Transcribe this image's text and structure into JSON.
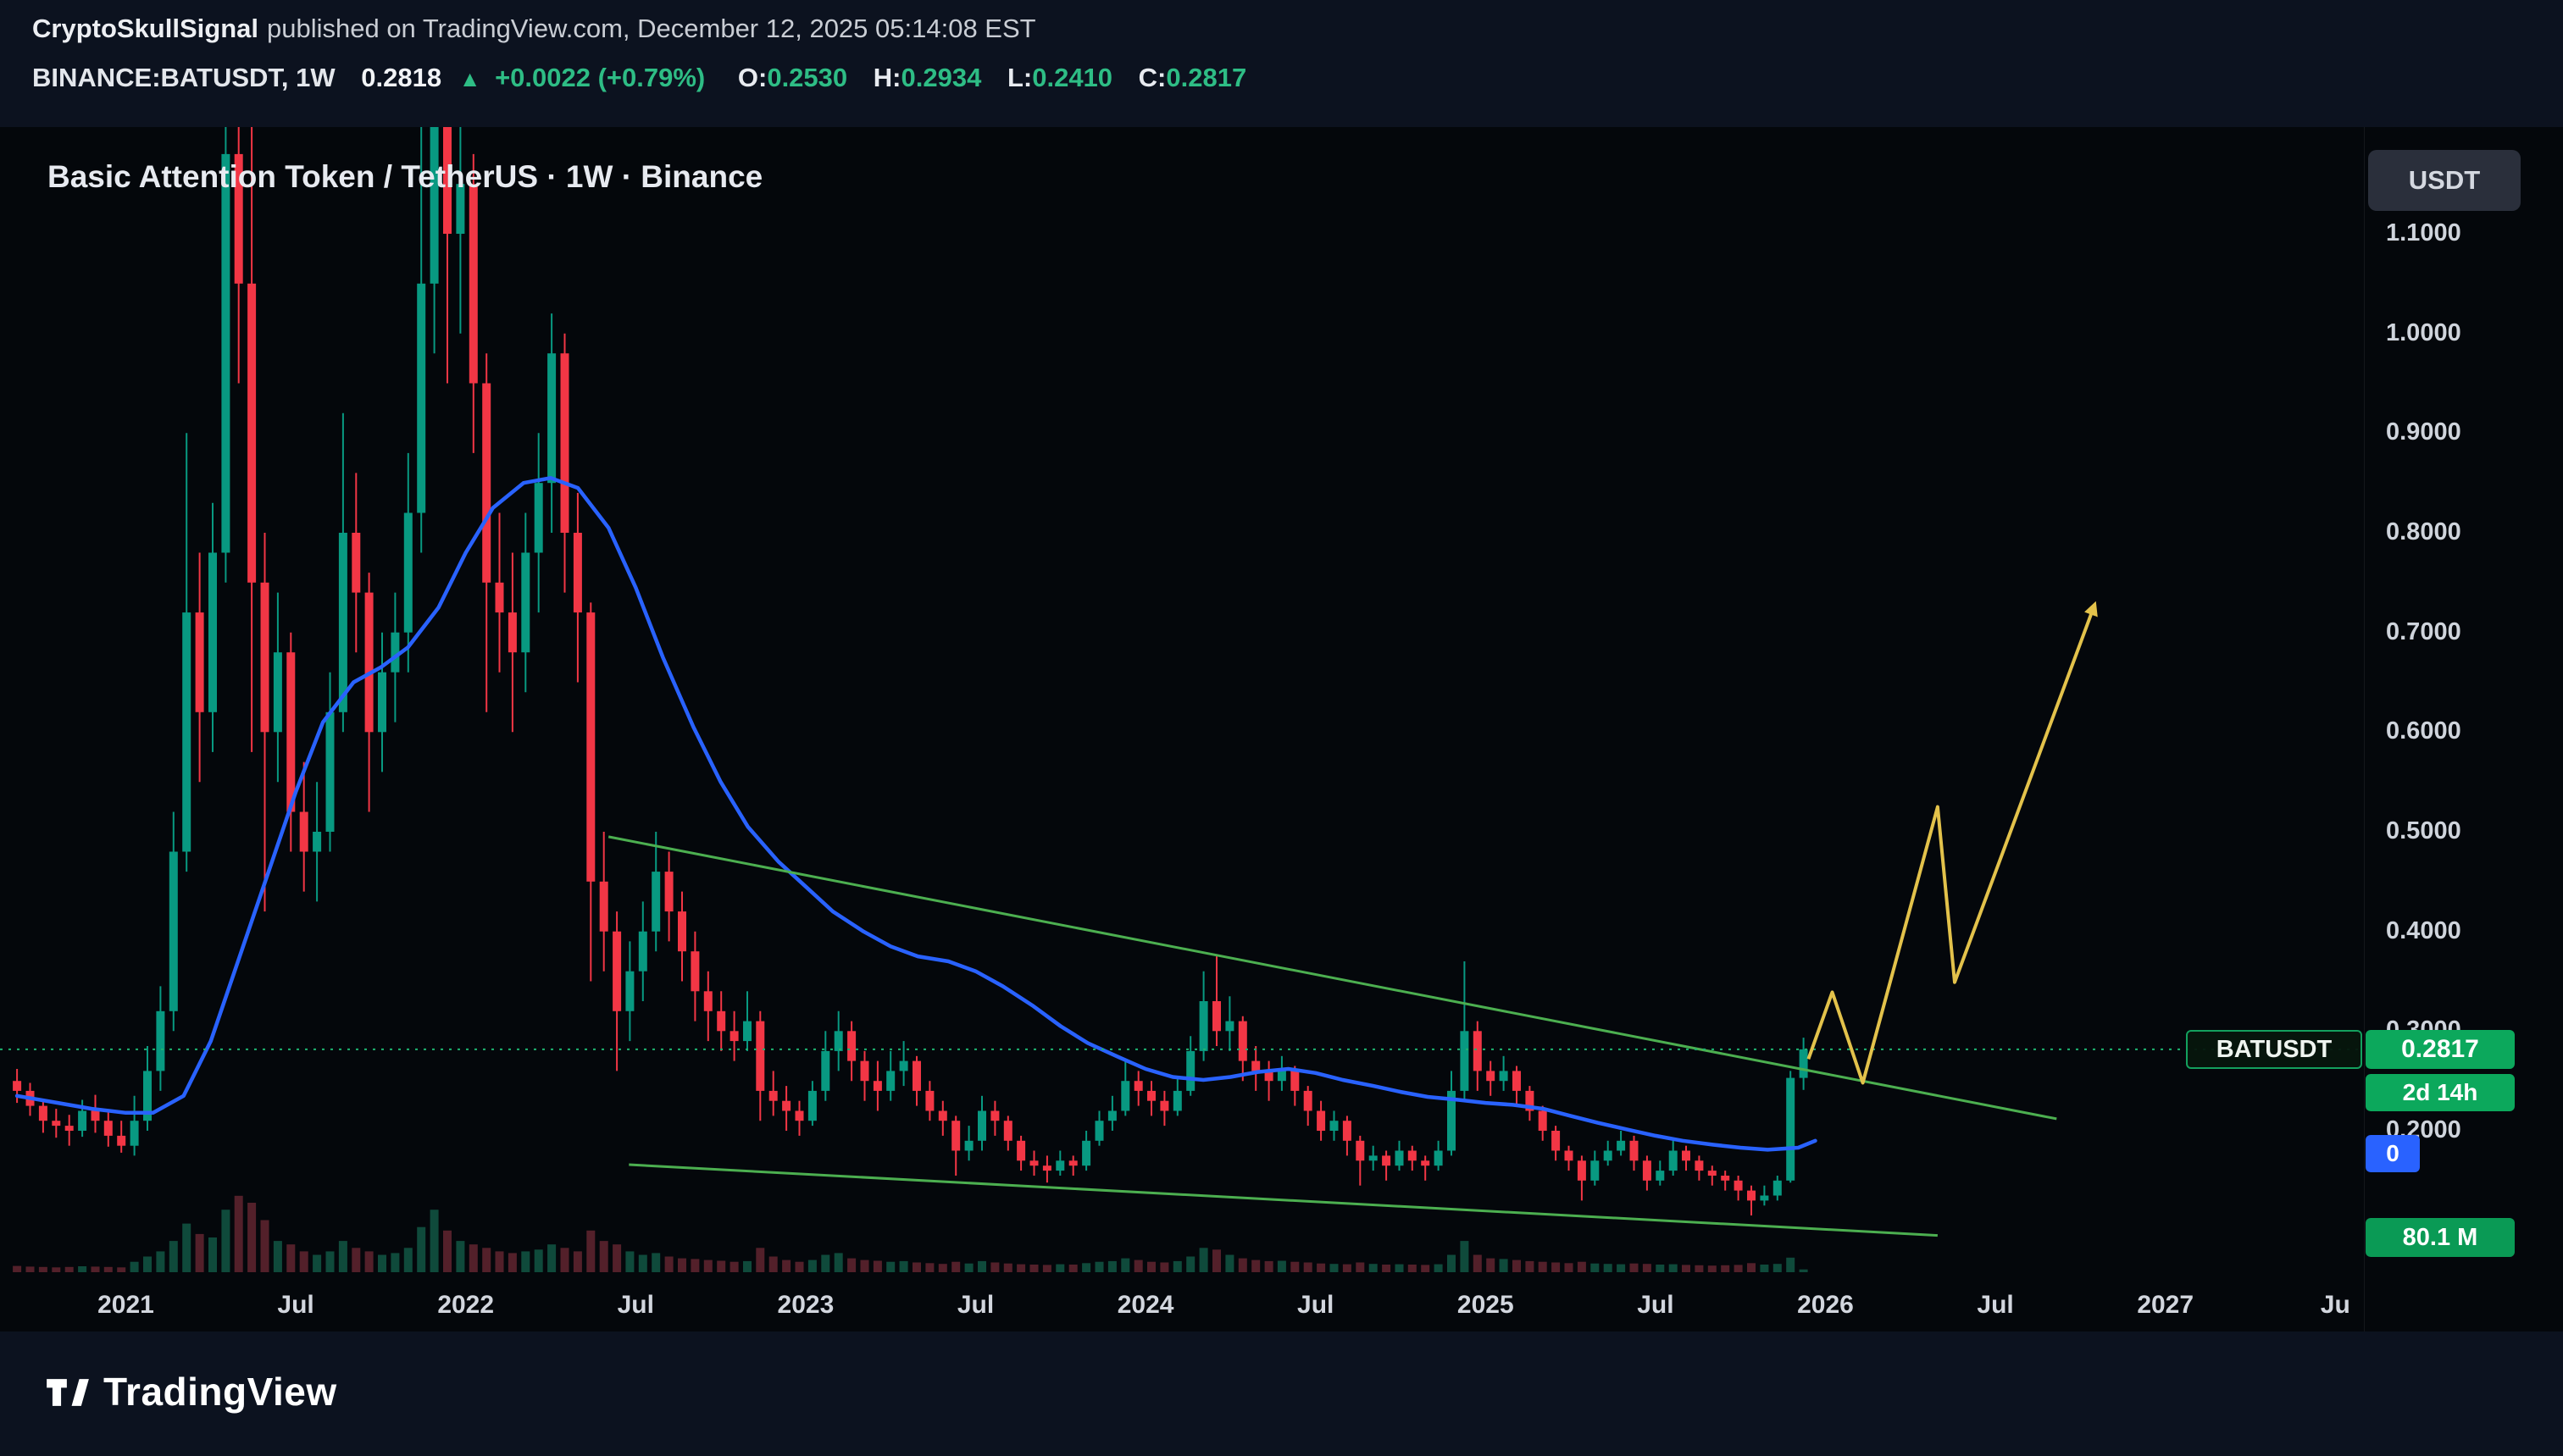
{
  "header": {
    "author": "CryptoSkullSignal",
    "published": "published on TradingView.com, December 12, 2025 05:14:08 EST",
    "symbol_line": {
      "symbol": "BINANCE:BATUSDT, 1W",
      "price": "0.2818",
      "direction_icon": "▲",
      "change": "+0.0022 (+0.79%)",
      "o_label": "O:",
      "o": "0.2530",
      "h_label": "H:",
      "h": "0.2934",
      "l_label": "L:",
      "l": "0.2410",
      "c_label": "C:",
      "c": "0.2817"
    }
  },
  "chart": {
    "title": "Basic Attention Token / TetherUS · 1W · Binance",
    "currency_button": "USDT",
    "symbol_tag": "BATUSDT",
    "price_tag": "0.2817",
    "countdown_tag": "2d 14h",
    "indicator_tag": "0",
    "volume_tag": "80.1 M"
  },
  "footer": {
    "brand": "TradingView"
  },
  "chart_data": {
    "type": "candlestick",
    "symbol": "BINANCE:BATUSDT",
    "interval": "1W",
    "exchange": "Binance",
    "current_price": 0.2817,
    "colors": {
      "up": "#089981",
      "down": "#f23645",
      "ma": "#2962ff",
      "trendline": "#4caf50",
      "projection": "#e3c24b",
      "current_price_line": "#1db470",
      "volume_up": "#0f4a3b",
      "volume_down": "#53202a"
    },
    "y_ticks": [
      {
        "p": 1.1,
        "label": "1.1000"
      },
      {
        "p": 1.0,
        "label": "1.0000"
      },
      {
        "p": 0.9,
        "label": "0.9000"
      },
      {
        "p": 0.8,
        "label": "0.8000"
      },
      {
        "p": 0.7,
        "label": "0.7000"
      },
      {
        "p": 0.6,
        "label": "0.6000"
      },
      {
        "p": 0.5,
        "label": "0.5000"
      },
      {
        "p": 0.4,
        "label": "0.4000"
      },
      {
        "p": 0.3,
        "label": "0.3000"
      },
      {
        "p": 0.2,
        "label": "0.2000"
      }
    ],
    "x_ticks": [
      {
        "t": 2021,
        "label": "2021"
      },
      {
        "t": 2021.5,
        "label": "Jul"
      },
      {
        "t": 2022,
        "label": "2022"
      },
      {
        "t": 2022.5,
        "label": "Jul"
      },
      {
        "t": 2023,
        "label": "2023"
      },
      {
        "t": 2023.5,
        "label": "Jul"
      },
      {
        "t": 2024,
        "label": "2024"
      },
      {
        "t": 2024.5,
        "label": "Jul"
      },
      {
        "t": 2025,
        "label": "2025"
      },
      {
        "t": 2025.5,
        "label": "Jul"
      },
      {
        "t": 2026,
        "label": "2026"
      },
      {
        "t": 2026.5,
        "label": "Jul"
      },
      {
        "t": 2027,
        "label": "2027"
      },
      {
        "t": 2027.5,
        "label": "Ju"
      }
    ],
    "candles_t0": 2020.68,
    "candles_dt": 0.03836,
    "candles": [
      [
        0.25,
        0.262,
        0.228,
        0.24
      ],
      [
        0.24,
        0.248,
        0.215,
        0.225
      ],
      [
        0.225,
        0.232,
        0.198,
        0.21
      ],
      [
        0.21,
        0.222,
        0.193,
        0.205
      ],
      [
        0.205,
        0.216,
        0.185,
        0.2
      ],
      [
        0.2,
        0.231,
        0.194,
        0.22
      ],
      [
        0.22,
        0.236,
        0.198,
        0.21
      ],
      [
        0.21,
        0.22,
        0.184,
        0.195
      ],
      [
        0.195,
        0.21,
        0.178,
        0.185
      ],
      [
        0.185,
        0.235,
        0.175,
        0.21
      ],
      [
        0.21,
        0.285,
        0.2,
        0.26
      ],
      [
        0.26,
        0.345,
        0.24,
        0.32
      ],
      [
        0.32,
        0.52,
        0.3,
        0.48
      ],
      [
        0.48,
        0.9,
        0.46,
        0.72
      ],
      [
        0.72,
        0.78,
        0.55,
        0.62
      ],
      [
        0.62,
        0.83,
        0.58,
        0.78
      ],
      [
        0.78,
        1.25,
        0.75,
        1.18
      ],
      [
        1.18,
        1.62,
        0.95,
        1.05
      ],
      [
        1.05,
        1.32,
        0.58,
        0.75
      ],
      [
        0.75,
        0.8,
        0.42,
        0.6
      ],
      [
        0.6,
        0.74,
        0.55,
        0.68
      ],
      [
        0.68,
        0.7,
        0.48,
        0.52
      ],
      [
        0.52,
        0.57,
        0.44,
        0.48
      ],
      [
        0.48,
        0.55,
        0.43,
        0.5
      ],
      [
        0.5,
        0.66,
        0.48,
        0.62
      ],
      [
        0.62,
        0.92,
        0.6,
        0.8
      ],
      [
        0.8,
        0.86,
        0.68,
        0.74
      ],
      [
        0.74,
        0.76,
        0.52,
        0.6
      ],
      [
        0.6,
        0.7,
        0.56,
        0.66
      ],
      [
        0.66,
        0.74,
        0.61,
        0.7
      ],
      [
        0.7,
        0.88,
        0.66,
        0.82
      ],
      [
        0.82,
        1.35,
        0.78,
        1.05
      ],
      [
        1.05,
        1.92,
        0.98,
        1.35
      ],
      [
        1.35,
        1.4,
        0.95,
        1.1
      ],
      [
        1.1,
        1.28,
        1.0,
        1.15
      ],
      [
        1.15,
        1.18,
        0.88,
        0.95
      ],
      [
        0.95,
        0.98,
        0.62,
        0.75
      ],
      [
        0.75,
        0.82,
        0.66,
        0.72
      ],
      [
        0.72,
        0.78,
        0.6,
        0.68
      ],
      [
        0.68,
        0.82,
        0.64,
        0.78
      ],
      [
        0.78,
        0.9,
        0.72,
        0.85
      ],
      [
        0.85,
        1.02,
        0.8,
        0.98
      ],
      [
        0.98,
        1.0,
        0.74,
        0.8
      ],
      [
        0.8,
        0.84,
        0.65,
        0.72
      ],
      [
        0.72,
        0.73,
        0.35,
        0.45
      ],
      [
        0.45,
        0.5,
        0.36,
        0.4
      ],
      [
        0.4,
        0.42,
        0.26,
        0.32
      ],
      [
        0.32,
        0.39,
        0.29,
        0.36
      ],
      [
        0.36,
        0.43,
        0.33,
        0.4
      ],
      [
        0.4,
        0.5,
        0.38,
        0.46
      ],
      [
        0.46,
        0.48,
        0.39,
        0.42
      ],
      [
        0.42,
        0.44,
        0.35,
        0.38
      ],
      [
        0.38,
        0.4,
        0.31,
        0.34
      ],
      [
        0.34,
        0.36,
        0.29,
        0.32
      ],
      [
        0.32,
        0.34,
        0.28,
        0.3
      ],
      [
        0.3,
        0.32,
        0.27,
        0.29
      ],
      [
        0.29,
        0.34,
        0.28,
        0.31
      ],
      [
        0.31,
        0.32,
        0.21,
        0.24
      ],
      [
        0.24,
        0.26,
        0.215,
        0.23
      ],
      [
        0.23,
        0.245,
        0.2,
        0.22
      ],
      [
        0.22,
        0.23,
        0.195,
        0.21
      ],
      [
        0.21,
        0.25,
        0.205,
        0.24
      ],
      [
        0.24,
        0.3,
        0.23,
        0.28
      ],
      [
        0.28,
        0.32,
        0.26,
        0.3
      ],
      [
        0.3,
        0.31,
        0.25,
        0.27
      ],
      [
        0.27,
        0.28,
        0.23,
        0.25
      ],
      [
        0.25,
        0.27,
        0.22,
        0.24
      ],
      [
        0.24,
        0.28,
        0.23,
        0.26
      ],
      [
        0.26,
        0.29,
        0.245,
        0.27
      ],
      [
        0.27,
        0.275,
        0.225,
        0.24
      ],
      [
        0.24,
        0.25,
        0.21,
        0.22
      ],
      [
        0.22,
        0.23,
        0.195,
        0.21
      ],
      [
        0.21,
        0.215,
        0.155,
        0.18
      ],
      [
        0.18,
        0.205,
        0.17,
        0.19
      ],
      [
        0.19,
        0.235,
        0.18,
        0.22
      ],
      [
        0.22,
        0.23,
        0.195,
        0.21
      ],
      [
        0.21,
        0.215,
        0.18,
        0.19
      ],
      [
        0.19,
        0.195,
        0.16,
        0.17
      ],
      [
        0.17,
        0.18,
        0.155,
        0.165
      ],
      [
        0.165,
        0.175,
        0.148,
        0.16
      ],
      [
        0.16,
        0.18,
        0.155,
        0.17
      ],
      [
        0.17,
        0.175,
        0.155,
        0.165
      ],
      [
        0.165,
        0.2,
        0.16,
        0.19
      ],
      [
        0.19,
        0.22,
        0.185,
        0.21
      ],
      [
        0.21,
        0.235,
        0.2,
        0.22
      ],
      [
        0.22,
        0.27,
        0.215,
        0.25
      ],
      [
        0.25,
        0.26,
        0.225,
        0.24
      ],
      [
        0.24,
        0.25,
        0.215,
        0.23
      ],
      [
        0.23,
        0.24,
        0.205,
        0.22
      ],
      [
        0.22,
        0.255,
        0.215,
        0.24
      ],
      [
        0.24,
        0.295,
        0.235,
        0.28
      ],
      [
        0.28,
        0.36,
        0.27,
        0.33
      ],
      [
        0.33,
        0.375,
        0.285,
        0.3
      ],
      [
        0.3,
        0.335,
        0.28,
        0.31
      ],
      [
        0.31,
        0.315,
        0.25,
        0.27
      ],
      [
        0.27,
        0.285,
        0.24,
        0.26
      ],
      [
        0.26,
        0.27,
        0.23,
        0.25
      ],
      [
        0.25,
        0.275,
        0.24,
        0.26
      ],
      [
        0.26,
        0.265,
        0.225,
        0.24
      ],
      [
        0.24,
        0.245,
        0.205,
        0.22
      ],
      [
        0.22,
        0.23,
        0.19,
        0.2
      ],
      [
        0.2,
        0.22,
        0.19,
        0.21
      ],
      [
        0.21,
        0.215,
        0.175,
        0.19
      ],
      [
        0.19,
        0.195,
        0.145,
        0.17
      ],
      [
        0.17,
        0.185,
        0.16,
        0.175
      ],
      [
        0.175,
        0.18,
        0.15,
        0.165
      ],
      [
        0.165,
        0.19,
        0.16,
        0.18
      ],
      [
        0.18,
        0.185,
        0.16,
        0.17
      ],
      [
        0.17,
        0.175,
        0.15,
        0.165
      ],
      [
        0.165,
        0.19,
        0.16,
        0.18
      ],
      [
        0.18,
        0.26,
        0.175,
        0.24
      ],
      [
        0.24,
        0.37,
        0.23,
        0.3
      ],
      [
        0.3,
        0.31,
        0.24,
        0.26
      ],
      [
        0.26,
        0.27,
        0.235,
        0.25
      ],
      [
        0.25,
        0.275,
        0.24,
        0.26
      ],
      [
        0.26,
        0.265,
        0.225,
        0.24
      ],
      [
        0.24,
        0.245,
        0.21,
        0.22
      ],
      [
        0.22,
        0.225,
        0.19,
        0.2
      ],
      [
        0.2,
        0.205,
        0.17,
        0.18
      ],
      [
        0.18,
        0.185,
        0.16,
        0.17
      ],
      [
        0.17,
        0.175,
        0.13,
        0.15
      ],
      [
        0.15,
        0.18,
        0.145,
        0.17
      ],
      [
        0.17,
        0.19,
        0.165,
        0.18
      ],
      [
        0.18,
        0.2,
        0.175,
        0.19
      ],
      [
        0.19,
        0.195,
        0.16,
        0.17
      ],
      [
        0.17,
        0.175,
        0.14,
        0.15
      ],
      [
        0.15,
        0.17,
        0.145,
        0.16
      ],
      [
        0.16,
        0.19,
        0.155,
        0.18
      ],
      [
        0.18,
        0.185,
        0.16,
        0.17
      ],
      [
        0.17,
        0.175,
        0.15,
        0.16
      ],
      [
        0.16,
        0.165,
        0.145,
        0.155
      ],
      [
        0.155,
        0.16,
        0.14,
        0.15
      ],
      [
        0.15,
        0.155,
        0.13,
        0.14
      ],
      [
        0.14,
        0.145,
        0.115,
        0.13
      ],
      [
        0.13,
        0.145,
        0.125,
        0.135
      ],
      [
        0.135,
        0.155,
        0.13,
        0.15
      ],
      [
        0.15,
        0.26,
        0.148,
        0.253
      ],
      [
        0.253,
        0.2934,
        0.241,
        0.2817
      ]
    ],
    "volumes": [
      180,
      160,
      150,
      140,
      150,
      170,
      160,
      150,
      140,
      300,
      450,
      600,
      900,
      1400,
      1100,
      1000,
      1800,
      2200,
      2000,
      1500,
      900,
      800,
      600,
      500,
      600,
      900,
      700,
      600,
      500,
      550,
      700,
      1300,
      1800,
      1200,
      900,
      800,
      700,
      600,
      550,
      600,
      650,
      800,
      700,
      600,
      1200,
      900,
      800,
      600,
      500,
      550,
      450,
      400,
      380,
      350,
      330,
      300,
      320,
      700,
      450,
      350,
      300,
      350,
      500,
      550,
      400,
      350,
      330,
      300,
      320,
      280,
      260,
      240,
      300,
      250,
      320,
      280,
      250,
      230,
      220,
      210,
      230,
      220,
      260,
      300,
      320,
      400,
      350,
      300,
      280,
      320,
      450,
      700,
      650,
      500,
      400,
      350,
      320,
      330,
      300,
      280,
      250,
      240,
      230,
      280,
      240,
      220,
      230,
      220,
      210,
      230,
      500,
      900,
      500,
      400,
      380,
      350,
      320,
      300,
      280,
      260,
      300,
      250,
      240,
      230,
      250,
      240,
      220,
      230,
      210,
      200,
      190,
      200,
      210,
      260,
      220,
      240,
      420,
      80.1
    ],
    "ma_line": {
      "color": "#2962ff",
      "points": [
        [
          2020.68,
          0.235
        ],
        [
          2020.8,
          0.228
        ],
        [
          2020.9,
          0.222
        ],
        [
          2021.0,
          0.218
        ],
        [
          2021.08,
          0.218
        ],
        [
          2021.17,
          0.235
        ],
        [
          2021.25,
          0.29
        ],
        [
          2021.33,
          0.37
        ],
        [
          2021.42,
          0.46
        ],
        [
          2021.5,
          0.54
        ],
        [
          2021.58,
          0.61
        ],
        [
          2021.67,
          0.65
        ],
        [
          2021.75,
          0.665
        ],
        [
          2021.83,
          0.685
        ],
        [
          2021.92,
          0.725
        ],
        [
          2022.0,
          0.78
        ],
        [
          2022.08,
          0.825
        ],
        [
          2022.17,
          0.85
        ],
        [
          2022.25,
          0.855
        ],
        [
          2022.33,
          0.845
        ],
        [
          2022.42,
          0.805
        ],
        [
          2022.5,
          0.745
        ],
        [
          2022.58,
          0.675
        ],
        [
          2022.67,
          0.605
        ],
        [
          2022.75,
          0.55
        ],
        [
          2022.83,
          0.505
        ],
        [
          2022.92,
          0.47
        ],
        [
          2023.0,
          0.445
        ],
        [
          2023.08,
          0.42
        ],
        [
          2023.17,
          0.4
        ],
        [
          2023.25,
          0.385
        ],
        [
          2023.33,
          0.375
        ],
        [
          2023.42,
          0.37
        ],
        [
          2023.5,
          0.36
        ],
        [
          2023.58,
          0.345
        ],
        [
          2023.67,
          0.325
        ],
        [
          2023.75,
          0.305
        ],
        [
          2023.83,
          0.288
        ],
        [
          2023.92,
          0.274
        ],
        [
          2024.0,
          0.262
        ],
        [
          2024.08,
          0.254
        ],
        [
          2024.17,
          0.251
        ],
        [
          2024.25,
          0.254
        ],
        [
          2024.33,
          0.259
        ],
        [
          2024.42,
          0.262
        ],
        [
          2024.5,
          0.258
        ],
        [
          2024.58,
          0.251
        ],
        [
          2024.67,
          0.245
        ],
        [
          2024.75,
          0.239
        ],
        [
          2024.83,
          0.234
        ],
        [
          2024.92,
          0.231
        ],
        [
          2025.0,
          0.228
        ],
        [
          2025.08,
          0.226
        ],
        [
          2025.17,
          0.222
        ],
        [
          2025.25,
          0.215
        ],
        [
          2025.33,
          0.208
        ],
        [
          2025.42,
          0.201
        ],
        [
          2025.5,
          0.195
        ],
        [
          2025.58,
          0.19
        ],
        [
          2025.67,
          0.186
        ],
        [
          2025.75,
          0.183
        ],
        [
          2025.83,
          0.181
        ],
        [
          2025.92,
          0.183
        ],
        [
          2025.97,
          0.19
        ]
      ]
    },
    "trendlines": [
      {
        "from": [
          2022.42,
          0.495
        ],
        "to": [
          2026.68,
          0.212
        ]
      },
      {
        "from": [
          2022.48,
          0.166
        ],
        "to": [
          2026.33,
          0.095
        ]
      }
    ],
    "projection": {
      "points": [
        [
          2025.95,
          0.272
        ],
        [
          2026.02,
          0.339
        ],
        [
          2026.11,
          0.248
        ],
        [
          2026.33,
          0.525
        ],
        [
          2026.38,
          0.349
        ],
        [
          2026.79,
          0.726
        ]
      ]
    }
  }
}
